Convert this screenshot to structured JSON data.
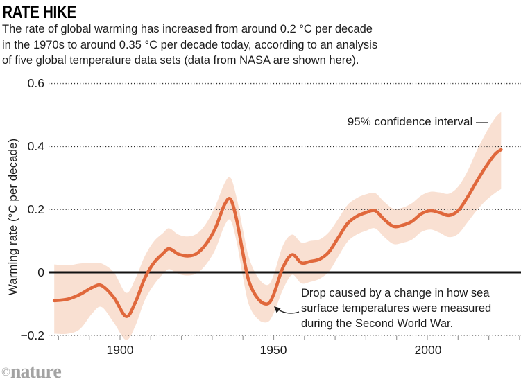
{
  "header": {
    "title": "RATE HIKE",
    "subtitle_lines": [
      "The rate of global warming has increased from around 0.2 °C per decade",
      "in the 1970s to around 0.35 °C per decade today, according to an analysis",
      "of five global temperature data sets (data from NASA are shown here)."
    ]
  },
  "chart_data": {
    "type": "line",
    "title": "RATE HIKE",
    "xlabel": "",
    "ylabel": "Warming rate (°C per decade)",
    "xlim": [
      1878,
      2030
    ],
    "ylim": [
      -0.2,
      0.6
    ],
    "grid": "dotted-horizontal",
    "zero_line": true,
    "legend_position": "none",
    "x_tick_labels": [
      "1900",
      "1950",
      "2000"
    ],
    "x_tick_years": [
      1900,
      1950,
      2000
    ],
    "x_minor_tick_years": [
      1880,
      1890,
      1900,
      1910,
      1920,
      1930,
      1940,
      1950,
      1960,
      1970,
      1980,
      1990,
      2000,
      2010,
      2020,
      2030
    ],
    "y_tick_labels": [
      "0.6",
      "0.4",
      "0.2",
      "0",
      "−0.2"
    ],
    "y_tick_values": [
      0.6,
      0.4,
      0.2,
      0,
      -0.2
    ],
    "series": [
      {
        "name": "NASA warming rate (°C per decade)",
        "x": [
          1878.6,
          1883,
          1887,
          1891,
          1894,
          1898,
          1902,
          1905,
          1908,
          1911,
          1914,
          1916,
          1919,
          1922,
          1925,
          1928,
          1931,
          1934,
          1936,
          1938,
          1940,
          1942,
          1945,
          1948,
          1950,
          1953,
          1956,
          1959,
          1962,
          1965,
          1968,
          1971,
          1974,
          1977,
          1980,
          1983,
          1986,
          1989,
          1992,
          1995,
          1998,
          2001,
          2004,
          2007,
          2010,
          2013,
          2016,
          2019,
          2022,
          2024
        ],
        "y": [
          -0.09,
          -0.085,
          -0.07,
          -0.048,
          -0.042,
          -0.08,
          -0.14,
          -0.095,
          -0.02,
          0.03,
          0.06,
          0.075,
          0.058,
          0.052,
          0.06,
          0.09,
          0.14,
          0.215,
          0.232,
          0.165,
          0.06,
          -0.03,
          -0.085,
          -0.1,
          -0.07,
          0.015,
          0.056,
          0.03,
          0.035,
          0.042,
          0.065,
          0.11,
          0.155,
          0.178,
          0.19,
          0.196,
          0.168,
          0.146,
          0.15,
          0.162,
          0.186,
          0.196,
          0.19,
          0.181,
          0.196,
          0.238,
          0.288,
          0.335,
          0.375,
          0.39
        ]
      },
      {
        "name": "95% confidence interval",
        "x": [
          1878.6,
          1883,
          1887,
          1891,
          1894,
          1898,
          1902,
          1905,
          1908,
          1911,
          1914,
          1916,
          1919,
          1922,
          1925,
          1928,
          1931,
          1934,
          1936,
          1938,
          1940,
          1942,
          1945,
          1948,
          1950,
          1953,
          1956,
          1959,
          1962,
          1965,
          1968,
          1971,
          1974,
          1977,
          1980,
          1983,
          1986,
          1989,
          1992,
          1995,
          1998,
          2001,
          2004,
          2007,
          2010,
          2013,
          2016,
          2019,
          2022,
          2024
        ],
        "lo": [
          -0.195,
          -0.195,
          -0.18,
          -0.13,
          -0.11,
          -0.16,
          -0.215,
          -0.17,
          -0.09,
          -0.04,
          -0.005,
          0.01,
          -0.005,
          -0.01,
          -0.003,
          0.025,
          0.072,
          0.148,
          0.165,
          0.095,
          -0.015,
          -0.105,
          -0.15,
          -0.158,
          -0.13,
          -0.055,
          -0.008,
          -0.035,
          -0.03,
          -0.02,
          0.003,
          0.05,
          0.097,
          0.12,
          0.132,
          0.14,
          0.112,
          0.09,
          0.094,
          0.104,
          0.128,
          0.136,
          0.126,
          0.112,
          0.122,
          0.158,
          0.196,
          0.228,
          0.252,
          0.265
        ],
        "hi": [
          0.025,
          0.022,
          0.028,
          0.03,
          0.028,
          0.0,
          -0.065,
          -0.02,
          0.05,
          0.098,
          0.125,
          0.14,
          0.12,
          0.114,
          0.123,
          0.155,
          0.21,
          0.283,
          0.3,
          0.235,
          0.135,
          0.045,
          -0.018,
          -0.04,
          -0.008,
          0.085,
          0.12,
          0.095,
          0.1,
          0.105,
          0.128,
          0.17,
          0.214,
          0.236,
          0.248,
          0.252,
          0.224,
          0.202,
          0.206,
          0.22,
          0.244,
          0.256,
          0.254,
          0.25,
          0.272,
          0.32,
          0.385,
          0.442,
          0.49,
          0.51
        ]
      }
    ],
    "annotations": [
      {
        "text": "95% confidence interval —",
        "target": "confidence band, right side"
      },
      {
        "text": "Drop caused by a change in how sea surface temperatures were measured during the Second World War.",
        "target": "minimum near 1948"
      }
    ]
  },
  "annotations": {
    "ci_label": "95% confidence interval —",
    "drop_lines": [
      "Drop caused by a change in how sea",
      "surface temperatures were measured",
      "during the Second World War."
    ]
  },
  "footer": {
    "credit_symbol": "©",
    "credit_name": "nature"
  },
  "colors": {
    "line": "#e0683c",
    "band": "#f9e0d2",
    "zero_line": "#111111",
    "grid_dots": "#2b2b2b",
    "axis_ticks": "#999999",
    "text": "#1a1a1a",
    "credit": "#a3a3a3",
    "background": "#ffffff"
  }
}
